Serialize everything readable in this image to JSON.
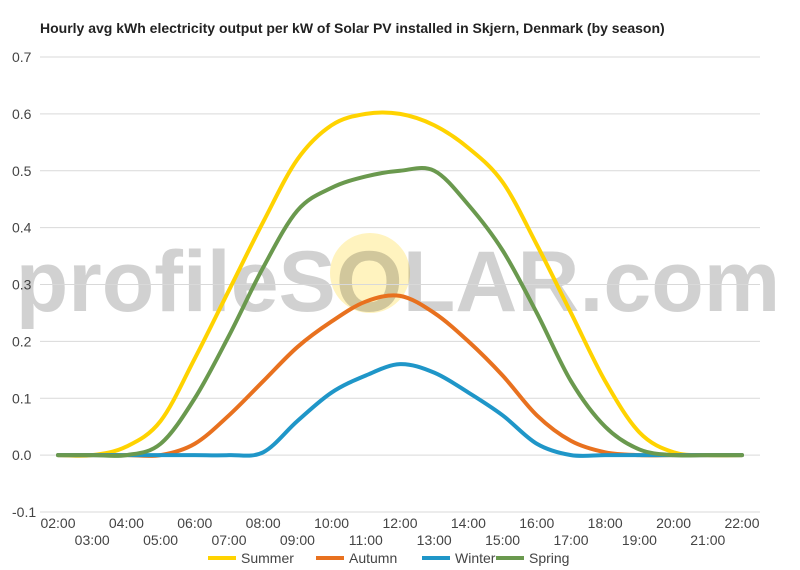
{
  "chart_data": {
    "type": "line",
    "title": "Hourly avg kWh electricity output per kW of Solar PV installed in Skjern, Denmark (by season)",
    "watermark": "profileSOLAR.com",
    "x": [
      "02:00",
      "03:00",
      "04:00",
      "05:00",
      "06:00",
      "07:00",
      "08:00",
      "09:00",
      "10:00",
      "11:00",
      "12:00",
      "13:00",
      "14:00",
      "15:00",
      "16:00",
      "17:00",
      "18:00",
      "19:00",
      "20:00",
      "21:00",
      "22:00"
    ],
    "x_ticks_upper": [
      "02:00",
      "04:00",
      "06:00",
      "08:00",
      "10:00",
      "12:00",
      "14:00",
      "16:00",
      "18:00",
      "20:00",
      "22:00"
    ],
    "x_ticks_lower": [
      "03:00",
      "05:00",
      "07:00",
      "09:00",
      "11:00",
      "13:00",
      "15:00",
      "17:00",
      "19:00",
      "21:00"
    ],
    "y_ticks": [
      "0.7",
      "0.6",
      "0.5",
      "0.4",
      "0.3",
      "0.2",
      "0.1",
      "0.0",
      "-0.1"
    ],
    "ylim": [
      -0.1,
      0.7
    ],
    "grid": true,
    "legend_position": "bottom",
    "series": [
      {
        "name": "Summer",
        "color": "#FFD300",
        "values": [
          0.0,
          0.0,
          0.015,
          0.06,
          0.17,
          0.29,
          0.41,
          0.52,
          0.58,
          0.6,
          0.6,
          0.58,
          0.54,
          0.48,
          0.37,
          0.25,
          0.13,
          0.04,
          0.005,
          0.0,
          0.0
        ]
      },
      {
        "name": "Autumn",
        "color": "#E8711F",
        "values": [
          0.0,
          0.0,
          0.0,
          0.0,
          0.02,
          0.07,
          0.13,
          0.19,
          0.235,
          0.27,
          0.28,
          0.25,
          0.2,
          0.14,
          0.07,
          0.025,
          0.005,
          0.0,
          0.0,
          0.0,
          0.0
        ]
      },
      {
        "name": "Winter",
        "color": "#1F96C8",
        "values": [
          0.0,
          0.0,
          0.0,
          0.0,
          0.0,
          0.0,
          0.005,
          0.06,
          0.11,
          0.14,
          0.16,
          0.145,
          0.11,
          0.07,
          0.02,
          0.0,
          0.0,
          0.0,
          0.0,
          0.0,
          0.0
        ]
      },
      {
        "name": "Spring",
        "color": "#6A994E",
        "values": [
          0.0,
          0.0,
          0.0,
          0.02,
          0.1,
          0.21,
          0.33,
          0.43,
          0.47,
          0.49,
          0.5,
          0.5,
          0.44,
          0.36,
          0.25,
          0.13,
          0.05,
          0.01,
          0.0,
          0.0,
          0.0
        ]
      }
    ]
  }
}
